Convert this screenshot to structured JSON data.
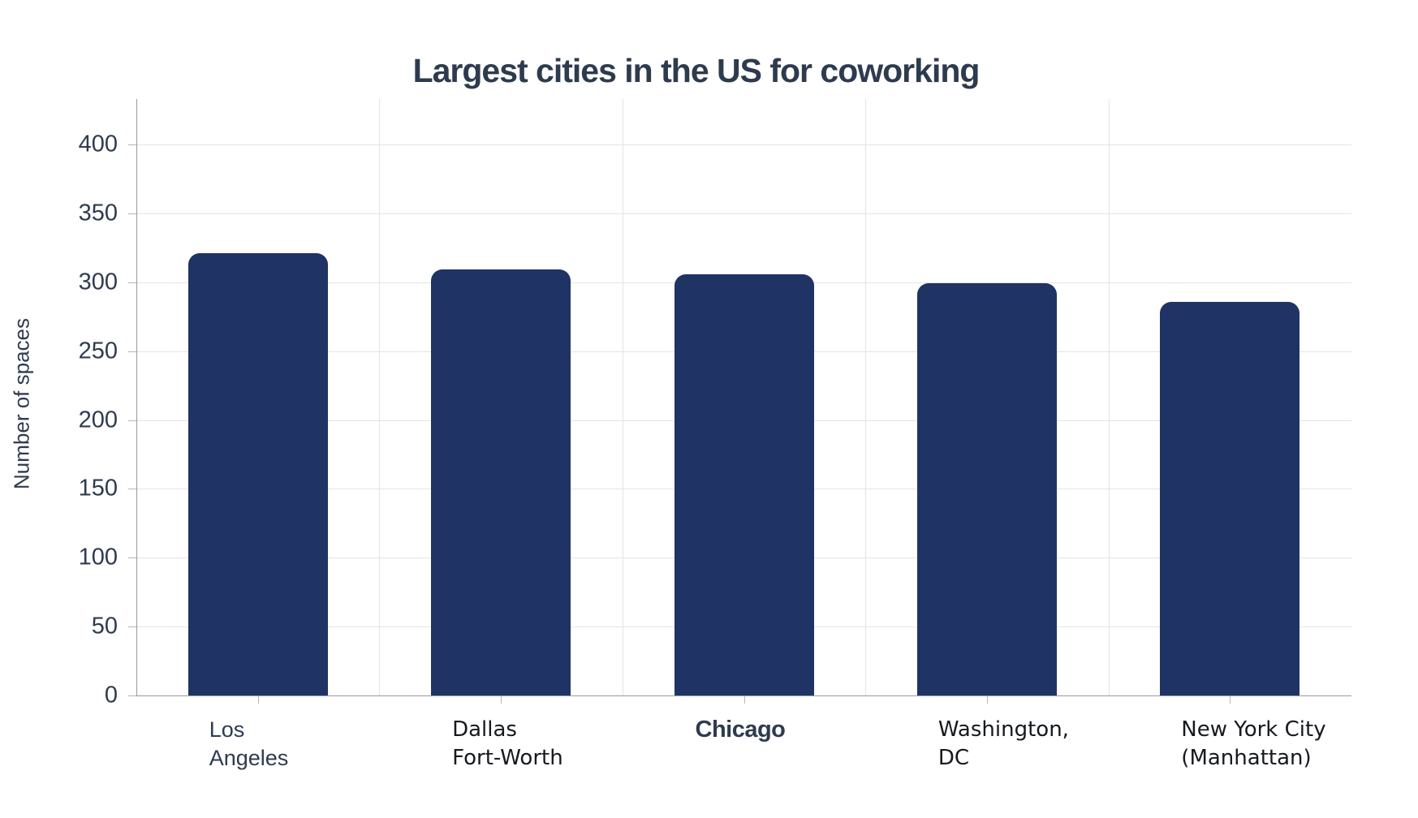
{
  "title": "Largest cities in the US for coworking",
  "chart_data": {
    "type": "bar",
    "title": "Largest cities in the US for coworking",
    "xlabel": "",
    "ylabel": "Number of spaces",
    "categories": [
      "Los Angeles",
      "Dallas Fort-Worth",
      "Chicago",
      "Washington, DC",
      "New York City (Manhattan)"
    ],
    "values": [
      321,
      309,
      306,
      299,
      286
    ],
    "ylim": [
      0,
      400
    ],
    "yticks": [
      0,
      50,
      100,
      150,
      200,
      250,
      300,
      350,
      400
    ],
    "grid": true,
    "legend": false,
    "bar_color": "#1f3364",
    "category_labels": [
      {
        "lines": [
          "Los",
          "Angeles"
        ],
        "variant": "slate"
      },
      {
        "lines": [
          "Dallas",
          "Fort-Worth"
        ],
        "variant": "black"
      },
      {
        "lines": [
          "Chicago"
        ],
        "variant": "slate-condensed"
      },
      {
        "lines": [
          "Washington,",
          "DC"
        ],
        "variant": "black"
      },
      {
        "lines": [
          "New York City",
          "(Manhattan)"
        ],
        "variant": "black"
      }
    ]
  },
  "colors": {
    "bar": "#1f3364",
    "slate_text": "#2e3b4e",
    "black_text": "#16191e",
    "gridline": "#e4e4e4",
    "axis": "#9b9b9b"
  }
}
